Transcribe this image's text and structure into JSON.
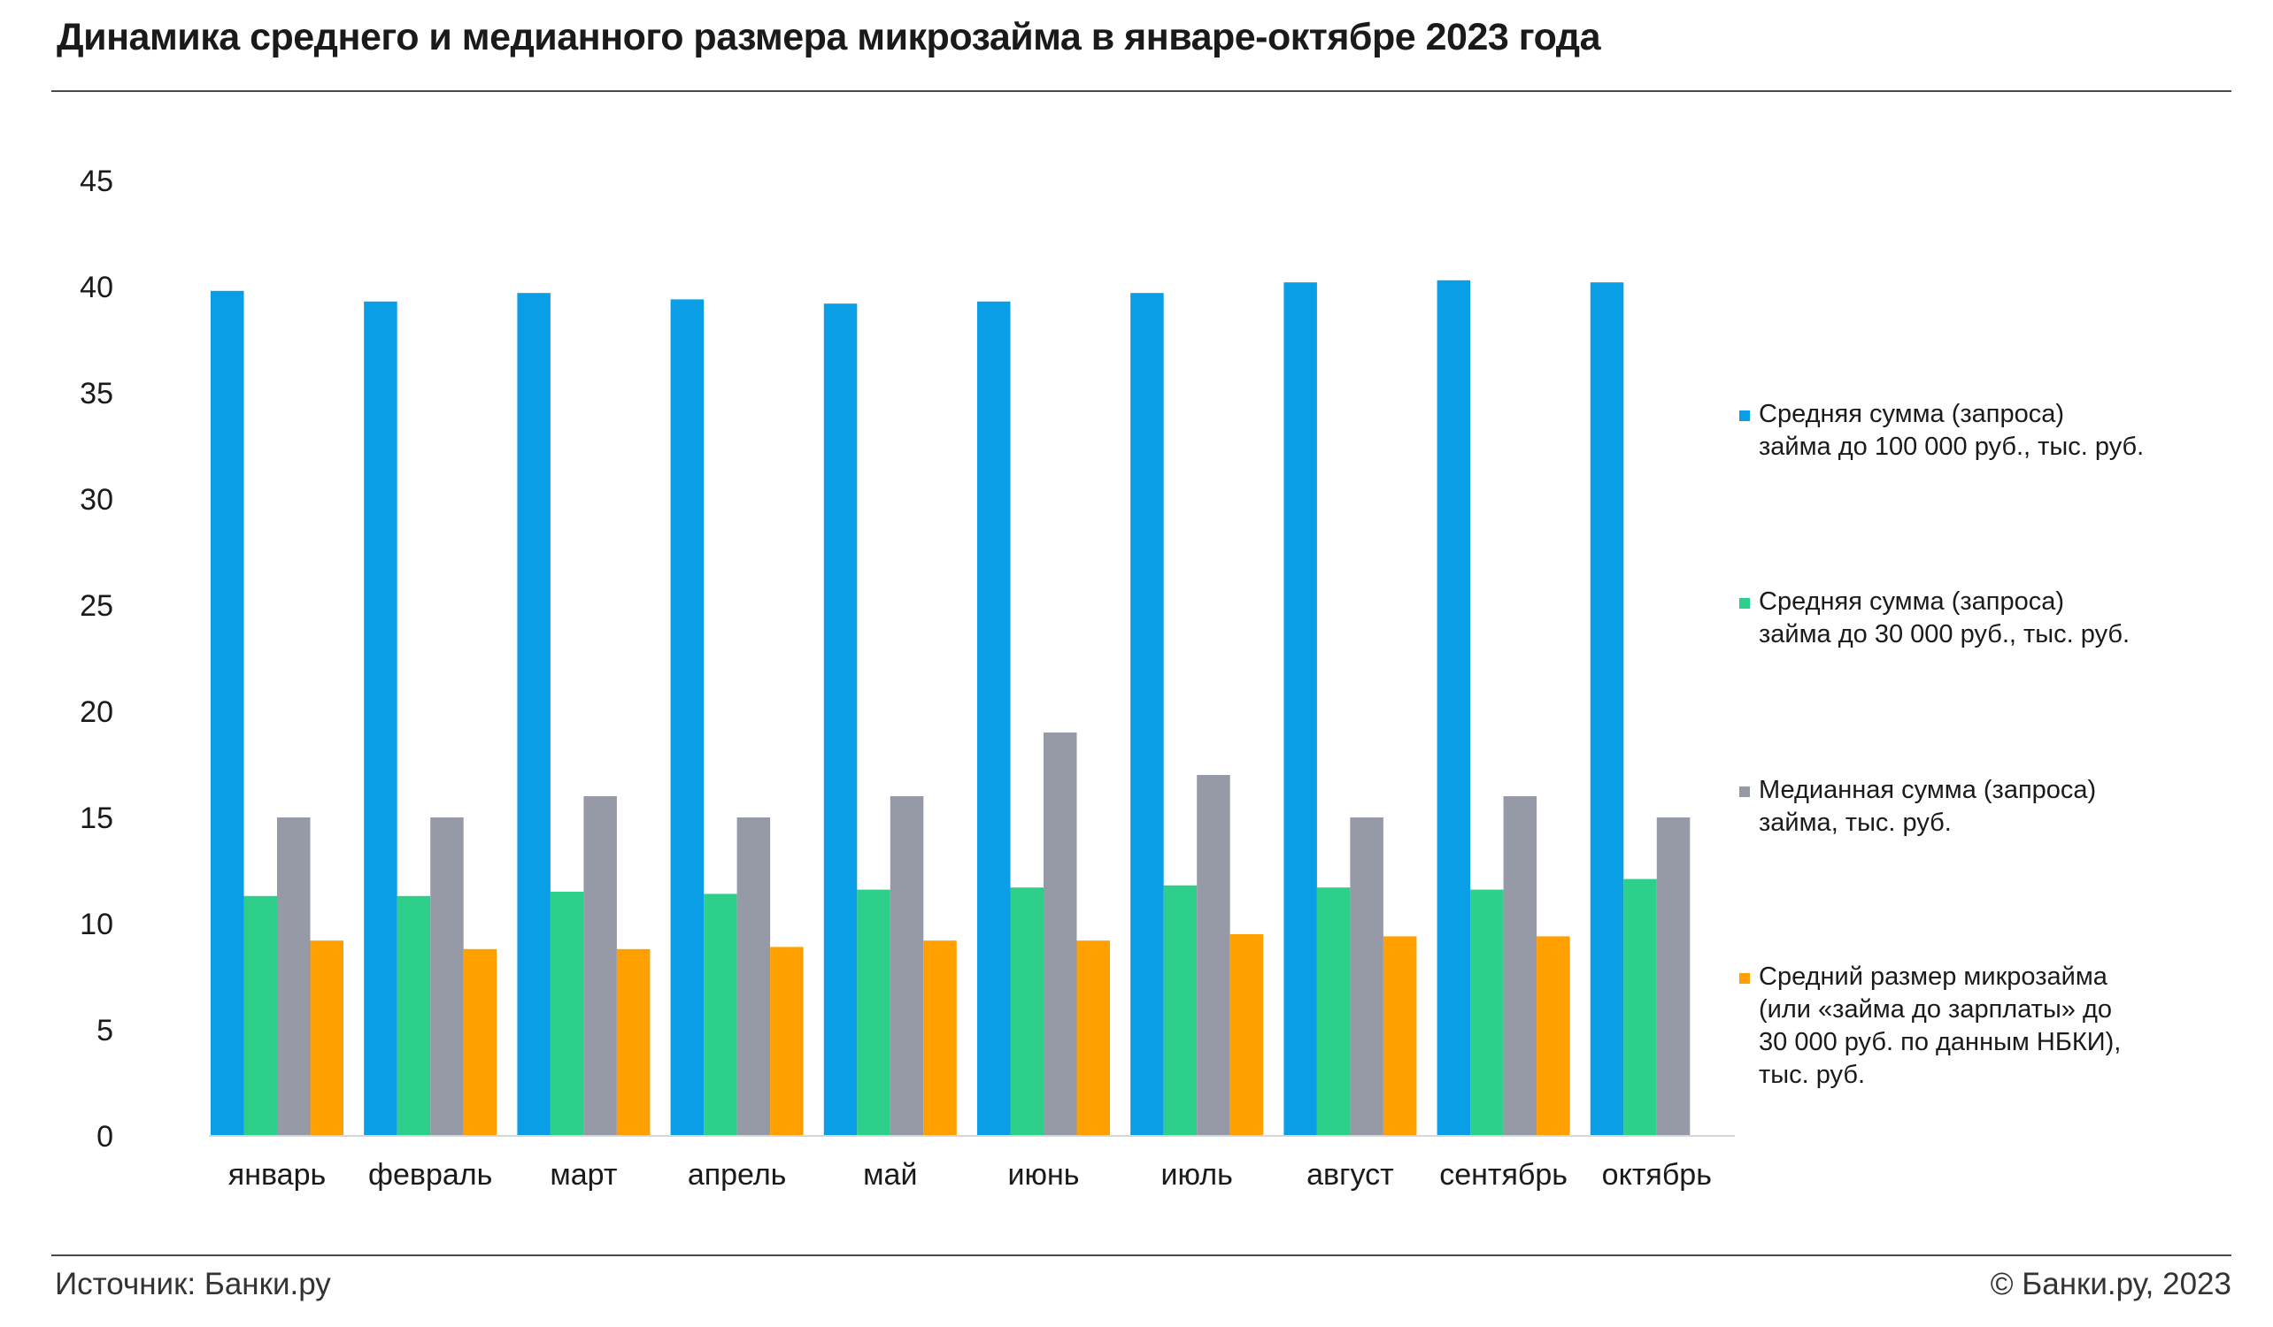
{
  "title": "Динамика среднего и медианного размера микрозайма в январе-октябре 2023 года",
  "footer": {
    "source": "Источник: Банки.ру",
    "copyright": "© Банки.ру, 2023"
  },
  "chart_data": {
    "type": "bar",
    "title": "Динамика среднего и медианного размера микрозайма в январе-октябре 2023 года",
    "xlabel": "",
    "ylabel": "",
    "ylim": [
      0,
      45
    ],
    "yticks": [
      "0",
      "5",
      "10",
      "15",
      "20",
      "25",
      "30",
      "35",
      "40",
      "45"
    ],
    "grid": false,
    "legend_position": "right",
    "categories": [
      "январь",
      "февраль",
      "март",
      "апрель",
      "май",
      "июнь",
      "июль",
      "август",
      "сентябрь",
      "октябрь"
    ],
    "series": [
      {
        "name": "Средняя сумма (запроса)\nзайма до 100 000 руб., тыс. руб.",
        "color": "#0a9ee6",
        "values": [
          39.8,
          39.3,
          39.7,
          39.4,
          39.2,
          39.3,
          39.7,
          40.2,
          40.3,
          40.2
        ]
      },
      {
        "name": "Средняя сумма (запроса)\nзайма до 30 000 руб., тыс. руб.",
        "color": "#2ecf8a",
        "values": [
          11.3,
          11.3,
          11.5,
          11.4,
          11.6,
          11.7,
          11.8,
          11.7,
          11.6,
          12.1
        ]
      },
      {
        "name": "Медианная сумма (запроса)\nзайма, тыс. руб.",
        "color": "#969aa6",
        "values": [
          15,
          15,
          16,
          15,
          16,
          19,
          17,
          15,
          16,
          15
        ]
      },
      {
        "name": "Средний размер микрозайма\n(или «займа до зарплаты» до\n30 000 руб. по данным НБКИ),\nтыс. руб.",
        "color": "#ff9f00",
        "values": [
          9.2,
          8.8,
          8.8,
          8.9,
          9.2,
          9.2,
          9.5,
          9.4,
          9.4,
          null
        ]
      }
    ]
  }
}
